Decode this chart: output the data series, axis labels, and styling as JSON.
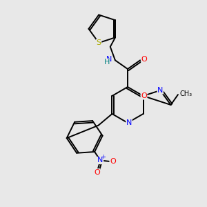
{
  "background_color": "#e8e8e8",
  "bond_color": "#000000",
  "atom_colors": {
    "N": "#0000ff",
    "O": "#ff0000",
    "S": "#aaaa00",
    "C": "#000000",
    "H": "#008080"
  }
}
